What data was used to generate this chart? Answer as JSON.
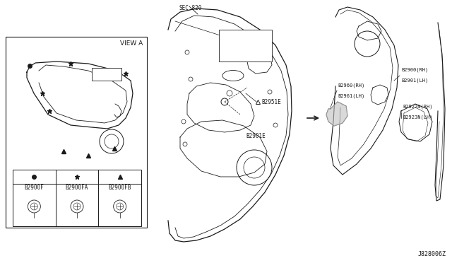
{
  "bg_color": "#ffffff",
  "line_color": "#1a1a1a",
  "diagram_id": "J828006Z",
  "labels": {
    "view_a": "VIEW A",
    "sec820": "SEC.820",
    "b2951e": "B2951E",
    "b2901e": "B2901E",
    "b2960rh": "B2960(RH)",
    "b2961lh": "B2961(LH)",
    "b2900rh": "B2900(RH)",
    "b2901lh": "B2901(LH)",
    "b2922n_rh": "B2922N(RH)",
    "b2923n_lh": "B2923N(LH)",
    "clip1": "B2900F",
    "clip2": "B2900FA",
    "clip3": "B2900FB"
  }
}
